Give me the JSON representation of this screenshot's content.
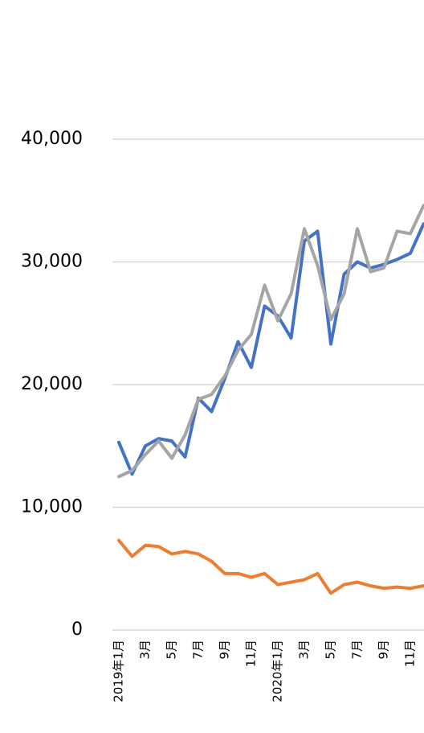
{
  "chart_data": {
    "type": "line",
    "categories": [
      "2019年1月",
      null,
      "3月",
      null,
      "5月",
      null,
      "7月",
      null,
      "9月",
      null,
      "11月",
      null,
      "2020年1月",
      null,
      "3月",
      null,
      "5月",
      null,
      "7月",
      null,
      "9月",
      null,
      "11月",
      null
    ],
    "series": [
      {
        "color": "#4472c4",
        "values": [
          15300,
          12700,
          15000,
          15600,
          15400,
          14100,
          18900,
          17800,
          20500,
          23500,
          21400,
          26400,
          25600,
          23800,
          31700,
          32500,
          23300,
          29000,
          30000,
          29500,
          29800,
          30200,
          30700,
          33100
        ]
      },
      {
        "color": "#ed7d31",
        "values": [
          7300,
          6000,
          6900,
          6800,
          6200,
          6400,
          6200,
          5600,
          4600,
          4600,
          4300,
          4600,
          3700,
          3900,
          4100,
          4600,
          3000,
          3700,
          3900,
          3600,
          3400,
          3500,
          3400,
          3600
        ]
      },
      {
        "color": "#a5a5a5",
        "values": [
          12500,
          13000,
          14300,
          15400,
          14000,
          15900,
          18800,
          19200,
          20700,
          22800,
          24100,
          28100,
          25200,
          27400,
          32700,
          29700,
          25300,
          27400,
          32700,
          29200,
          29500,
          32500,
          32300,
          34600
        ]
      }
    ],
    "ylim": [
      0,
      40000
    ],
    "yticks": [
      0,
      {
        "value": 10000,
        "label": "10,000"
      },
      {
        "value": 20000,
        "label": "20,000"
      },
      {
        "value": 30000,
        "label": "30,000"
      },
      {
        "value": 40000,
        "label": "40,000"
      }
    ],
    "grid": true
  }
}
